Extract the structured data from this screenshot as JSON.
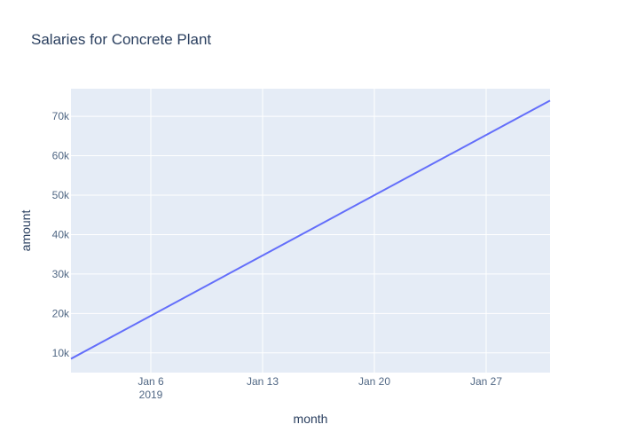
{
  "chart_data": {
    "type": "line",
    "title": "Salaries for Concrete Plant",
    "xlabel": "month",
    "ylabel": "amount",
    "x": [
      "2019-01-01",
      "2019-01-31"
    ],
    "series": [
      {
        "values": [
          8500,
          74000
        ],
        "color": "#636efa"
      }
    ],
    "xlim": [
      "2019-01-01",
      "2019-01-31"
    ],
    "ylim": [
      5000,
      77000
    ],
    "x_ticks": [
      {
        "date": "2019-01-06",
        "label": "Jan 6",
        "sublabel": "2019"
      },
      {
        "date": "2019-01-13",
        "label": "Jan 13",
        "sublabel": ""
      },
      {
        "date": "2019-01-20",
        "label": "Jan 20",
        "sublabel": ""
      },
      {
        "date": "2019-01-27",
        "label": "Jan 27",
        "sublabel": ""
      }
    ],
    "y_ticks": [
      {
        "value": 10000,
        "label": "10k"
      },
      {
        "value": 20000,
        "label": "20k"
      },
      {
        "value": 30000,
        "label": "30k"
      },
      {
        "value": 40000,
        "label": "40k"
      },
      {
        "value": 50000,
        "label": "50k"
      },
      {
        "value": 60000,
        "label": "60k"
      },
      {
        "value": 70000,
        "label": "70k"
      }
    ],
    "grid": true,
    "colors": {
      "plot_bg": "#e5ecf6",
      "grid": "#ffffff",
      "text": "#2a3f5f",
      "tick_text": "#506784"
    }
  }
}
